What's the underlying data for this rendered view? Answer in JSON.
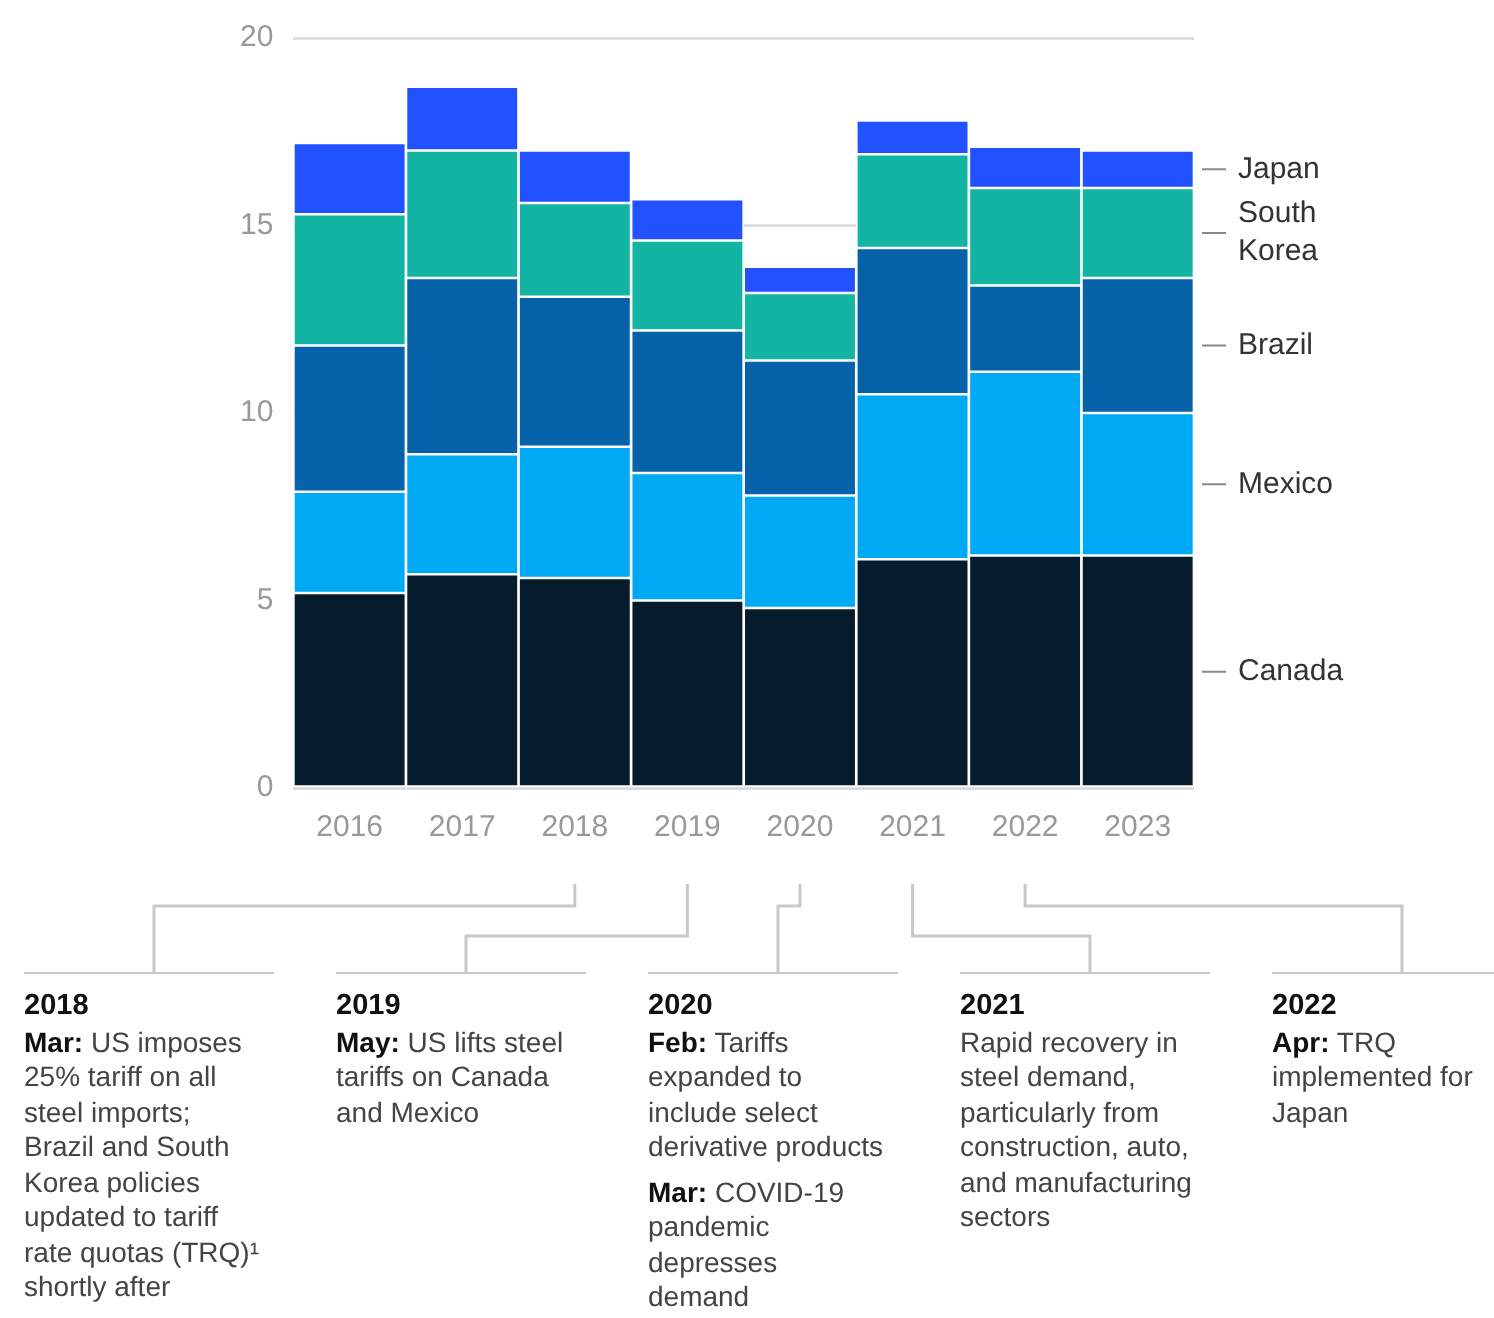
{
  "chart_data": {
    "type": "bar",
    "stacked": true,
    "categories": [
      "2016",
      "2017",
      "2018",
      "2019",
      "2020",
      "2021",
      "2022",
      "2023"
    ],
    "series": [
      {
        "name": "Canada",
        "color": "#061c2c",
        "values": [
          5.2,
          5.7,
          5.6,
          5.0,
          4.8,
          6.1,
          6.2,
          6.2
        ]
      },
      {
        "name": "Mexico",
        "color": "#00a9f4",
        "values": [
          2.7,
          3.2,
          3.5,
          3.4,
          3.0,
          4.4,
          4.9,
          3.8
        ]
      },
      {
        "name": "Brazil",
        "color": "#0561a8",
        "values": [
          3.9,
          4.7,
          4.0,
          3.8,
          3.6,
          3.9,
          2.3,
          3.6
        ]
      },
      {
        "name": "South Korea",
        "color": "#14b4a4",
        "values": [
          3.5,
          3.4,
          2.5,
          2.4,
          1.8,
          2.5,
          2.6,
          2.4
        ]
      },
      {
        "name": "Japan",
        "color": "#2251ff",
        "values": [
          1.9,
          1.7,
          1.4,
          1.1,
          0.7,
          0.9,
          1.1,
          1.0
        ]
      }
    ],
    "ylim": [
      0,
      20
    ],
    "yticks": [
      0,
      5,
      10,
      15,
      20
    ],
    "grid": "y",
    "annotations": [
      "2018\nMar: US imposes 25% tariff on all steel imports; Brazil and South Korea policies updated to tariff rate quotas (TRQ)¹ shortly after",
      "2019\nMay: US lifts steel tariffs on Canada and Mexico",
      "2020\nFeb: Tariffs expanded to include select derivative products\nMar: COVID-19 pandemic depresses demand",
      "2021\nRapid recovery in steel demand, particularly from construction, auto, and manufacturing sectors",
      "2022\nApr: TRQ implemented for Japan"
    ]
  }
}
